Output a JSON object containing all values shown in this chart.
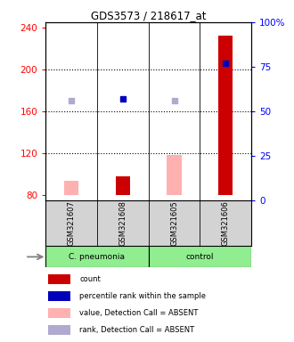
{
  "title": "GDS3573 / 218617_at",
  "samples": [
    "GSM321607",
    "GSM321608",
    "GSM321605",
    "GSM321606"
  ],
  "ylim_left": [
    75,
    245
  ],
  "ylim_right": [
    0,
    100
  ],
  "yticks_left": [
    80,
    120,
    160,
    200,
    240
  ],
  "yticks_right": [
    0,
    25,
    50,
    75,
    100
  ],
  "ytick_labels_right": [
    "0",
    "25",
    "50",
    "75",
    "100%"
  ],
  "bar_values": [
    93,
    98,
    118,
    232
  ],
  "detection_absent": [
    true,
    false,
    true,
    false
  ],
  "rank_pcts": [
    56,
    57,
    56,
    77
  ],
  "rank_absent": [
    true,
    false,
    true,
    false
  ],
  "bar_bottom": 80,
  "bar_color_dark": "#cc0000",
  "bar_color_light": "#ffb0b0",
  "rank_color_dark": "#0000bb",
  "rank_color_light": "#b0aad0",
  "group_names": [
    "C. pneumonia",
    "control"
  ],
  "group_color": "#90EE90",
  "legend_items": [
    {
      "color": "#cc0000",
      "label": "count"
    },
    {
      "color": "#0000bb",
      "label": "percentile rank within the sample"
    },
    {
      "color": "#ffb0b0",
      "label": "value, Detection Call = ABSENT"
    },
    {
      "color": "#b0aad0",
      "label": "rank, Detection Call = ABSENT"
    }
  ]
}
